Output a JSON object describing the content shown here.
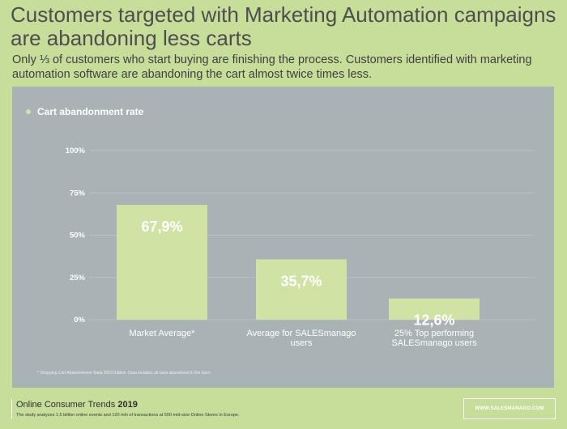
{
  "header": {
    "title": "Customers targeted with Marketing Automation campaigns are abandoning less carts",
    "subtitle": "Only ⅓ of customers who start buying are finishing the process. Customers identified with marketing automation software are abandoning the cart almost twice times less."
  },
  "chart_data": {
    "type": "bar",
    "title": "",
    "xlabel": "",
    "ylabel": "",
    "categories": [
      "Market Average*",
      "Average for SALESmanago users",
      "25% Top performing SALESmanago users"
    ],
    "series": [
      {
        "name": "Cart abandonment rate",
        "values": [
          67.9,
          35.7,
          12.6
        ]
      }
    ],
    "data_labels": [
      "67,9%",
      "35,7%",
      "12,6%"
    ],
    "ylim": [
      0,
      100
    ],
    "yticks": [
      0,
      25,
      50,
      75,
      100
    ],
    "ytick_labels": [
      "0%",
      "25%",
      "50%",
      "75%",
      "100%"
    ],
    "grid": true,
    "legend_position": "top-left",
    "colors": {
      "bar": "#cfe4a4",
      "panel": "#a9b2b5",
      "text": "#ffffff",
      "background": "#c7dd9a"
    }
  },
  "legend": {
    "label": "Cart abandonment rate"
  },
  "footnote": "* Shopping Cart Abandonment Stats 2019 Edition. Data includes all carts abandoned in the store.",
  "footer": {
    "title": "Online Consumer Trends",
    "year": "2019",
    "note": "The study analyzes 1.5 billion online events and 120 mln of transactions at 500 mid-size Online Stores in Europe.",
    "url": "WWW.SALESMANAGO.COM"
  }
}
